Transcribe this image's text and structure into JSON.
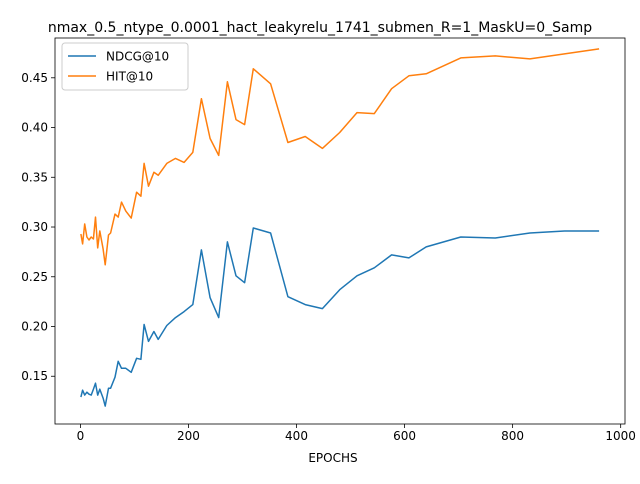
{
  "chart_data": {
    "type": "line",
    "title": "nmax_0.5_ntype_0.0001_hact_leakyrelu_1741_submen_R=1_MaskU=0_Samp",
    "xlabel": "EPOCHS",
    "ylabel": "",
    "xlim": [
      -47,
      1008
    ],
    "ylim": [
      0.102,
      0.49
    ],
    "xticks": [
      0,
      200,
      400,
      600,
      800,
      1000
    ],
    "yticks": [
      0.15,
      0.2,
      0.25,
      0.3,
      0.35,
      0.4,
      0.45
    ],
    "xtick_labels": [
      "0",
      "200",
      "400",
      "600",
      "800",
      "1000"
    ],
    "ytick_labels": [
      "0.15",
      "0.20",
      "0.25",
      "0.30",
      "0.35",
      "0.40",
      "0.45"
    ],
    "grid": false,
    "legend_position": "top-left",
    "series": [
      {
        "name": "NDCG@10",
        "color": "#1f77b4",
        "points": [
          [
            1,
            0.129
          ],
          [
            4,
            0.136
          ],
          [
            8,
            0.131
          ],
          [
            12,
            0.134
          ],
          [
            16,
            0.132
          ],
          [
            20,
            0.131
          ],
          [
            24,
            0.137
          ],
          [
            28,
            0.143
          ],
          [
            32,
            0.131
          ],
          [
            36,
            0.137
          ],
          [
            42,
            0.128
          ],
          [
            46,
            0.12
          ],
          [
            52,
            0.138
          ],
          [
            56,
            0.138
          ],
          [
            64,
            0.149
          ],
          [
            70,
            0.165
          ],
          [
            76,
            0.158
          ],
          [
            84,
            0.158
          ],
          [
            94,
            0.154
          ],
          [
            104,
            0.168
          ],
          [
            112,
            0.167
          ],
          [
            118,
            0.202
          ],
          [
            126,
            0.185
          ],
          [
            136,
            0.195
          ],
          [
            144,
            0.187
          ],
          [
            160,
            0.201
          ],
          [
            176,
            0.209
          ],
          [
            192,
            0.215
          ],
          [
            208,
            0.222
          ],
          [
            224,
            0.277
          ],
          [
            240,
            0.229
          ],
          [
            256,
            0.209
          ],
          [
            272,
            0.285
          ],
          [
            288,
            0.251
          ],
          [
            304,
            0.244
          ],
          [
            320,
            0.299
          ],
          [
            352,
            0.294
          ],
          [
            384,
            0.23
          ],
          [
            416,
            0.222
          ],
          [
            448,
            0.218
          ],
          [
            480,
            0.237
          ],
          [
            512,
            0.251
          ],
          [
            544,
            0.259
          ],
          [
            576,
            0.272
          ],
          [
            608,
            0.269
          ],
          [
            640,
            0.28
          ],
          [
            704,
            0.29
          ],
          [
            768,
            0.289
          ],
          [
            832,
            0.294
          ],
          [
            896,
            0.296
          ],
          [
            960,
            0.296
          ]
        ]
      },
      {
        "name": "HIT@10",
        "color": "#ff7f0e",
        "points": [
          [
            1,
            0.293
          ],
          [
            4,
            0.283
          ],
          [
            8,
            0.303
          ],
          [
            12,
            0.29
          ],
          [
            16,
            0.287
          ],
          [
            20,
            0.29
          ],
          [
            24,
            0.288
          ],
          [
            28,
            0.31
          ],
          [
            32,
            0.279
          ],
          [
            36,
            0.296
          ],
          [
            42,
            0.278
          ],
          [
            46,
            0.262
          ],
          [
            52,
            0.292
          ],
          [
            56,
            0.294
          ],
          [
            64,
            0.313
          ],
          [
            70,
            0.31
          ],
          [
            76,
            0.325
          ],
          [
            84,
            0.316
          ],
          [
            94,
            0.309
          ],
          [
            104,
            0.335
          ],
          [
            112,
            0.331
          ],
          [
            118,
            0.364
          ],
          [
            126,
            0.341
          ],
          [
            136,
            0.355
          ],
          [
            144,
            0.352
          ],
          [
            160,
            0.364
          ],
          [
            176,
            0.369
          ],
          [
            192,
            0.365
          ],
          [
            208,
            0.375
          ],
          [
            224,
            0.429
          ],
          [
            240,
            0.389
          ],
          [
            256,
            0.372
          ],
          [
            272,
            0.446
          ],
          [
            288,
            0.408
          ],
          [
            304,
            0.403
          ],
          [
            320,
            0.459
          ],
          [
            352,
            0.444
          ],
          [
            384,
            0.385
          ],
          [
            416,
            0.391
          ],
          [
            448,
            0.379
          ],
          [
            480,
            0.395
          ],
          [
            512,
            0.415
          ],
          [
            544,
            0.414
          ],
          [
            576,
            0.439
          ],
          [
            608,
            0.452
          ],
          [
            640,
            0.454
          ],
          [
            704,
            0.47
          ],
          [
            768,
            0.472
          ],
          [
            832,
            0.469
          ],
          [
            896,
            0.474
          ],
          [
            960,
            0.479
          ]
        ]
      }
    ]
  }
}
